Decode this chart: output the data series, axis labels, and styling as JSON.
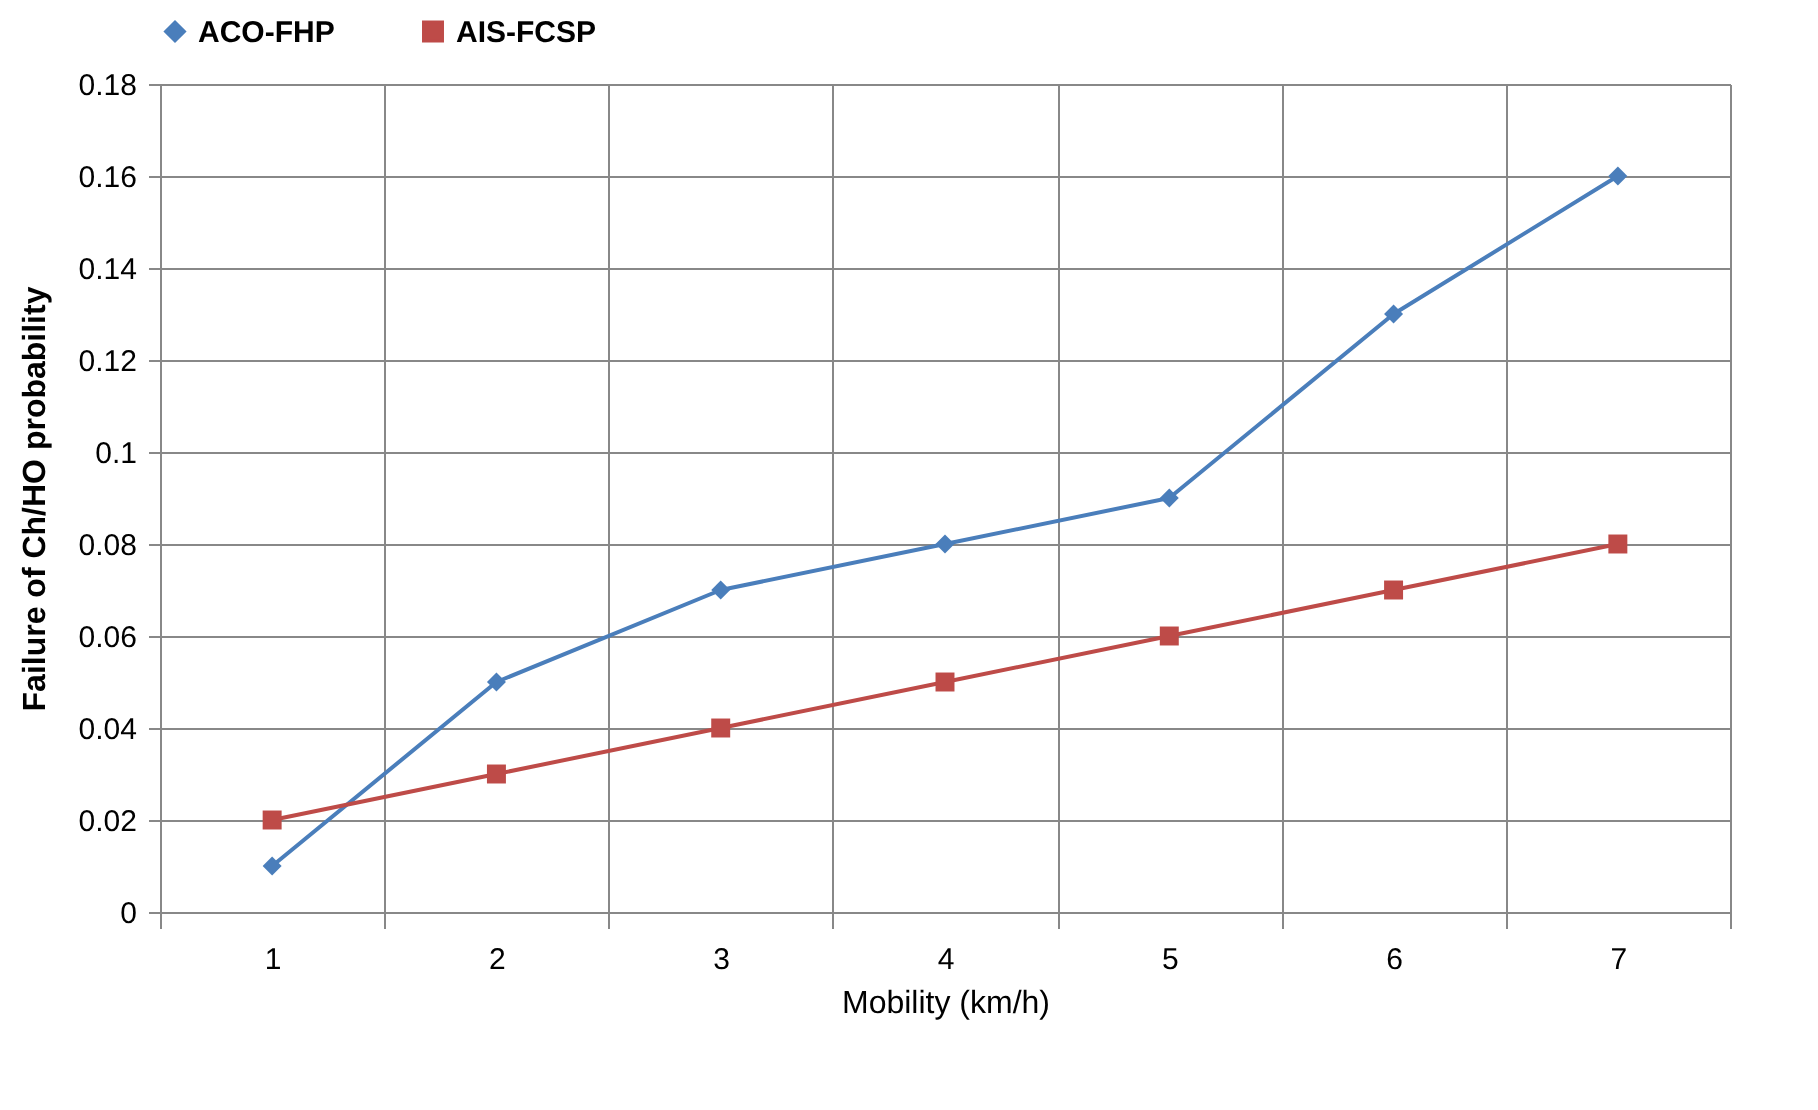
{
  "chart_data": {
    "type": "line",
    "xlabel": "Mobility (km/h)",
    "ylabel": "Failure of Ch/HO probability",
    "categories": [
      "1",
      "2",
      "3",
      "4",
      "5",
      "6",
      "7"
    ],
    "series": [
      {
        "name": "ACO-FHP",
        "color": "#4a7ebb",
        "marker": "diamond",
        "values": [
          0.01,
          0.05,
          0.07,
          0.08,
          0.09,
          0.13,
          0.16
        ]
      },
      {
        "name": "AIS-FCSP",
        "color": "#be4b48",
        "marker": "square",
        "values": [
          0.02,
          0.03,
          0.04,
          0.05,
          0.06,
          0.07,
          0.08
        ]
      }
    ],
    "ylim": [
      0,
      0.18
    ],
    "yticks": [
      0,
      0.02,
      0.04,
      0.06,
      0.08,
      0.1,
      0.12,
      0.14,
      0.16,
      0.18
    ],
    "grid": true,
    "legend": "top",
    "line_style": "solid"
  }
}
